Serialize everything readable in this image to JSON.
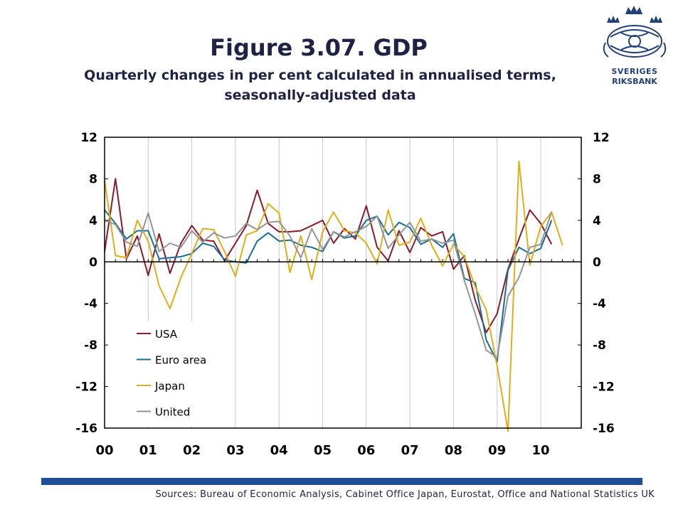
{
  "title": "Figure 3.07. GDP",
  "subtitle": "Quarterly changes in per cent calculated in annualised terms, seasonally-adjusted data",
  "sources": "Sources: Bureau of Economic Analysis, Cabinet Office Japan, Eurostat, Office and National Statistics UK",
  "logo": {
    "line1": "SVERIGES",
    "line2": "RIKSBANK",
    "color": "#24407a"
  },
  "chart_data": {
    "type": "line",
    "x_start_year": 2000,
    "x_tick_labels": [
      "00",
      "01",
      "02",
      "03",
      "04",
      "05",
      "06",
      "07",
      "08",
      "09",
      "10"
    ],
    "y_tick_labels_left": [
      "12",
      "8",
      "4",
      "0",
      "-4",
      "-8",
      "-12",
      "-16"
    ],
    "y_tick_labels_right": [
      "12",
      "8",
      "4",
      "0",
      "-4",
      "-8",
      "-12",
      "-16"
    ],
    "y_ticks": [
      12,
      8,
      4,
      0,
      -4,
      -8,
      -12,
      -16
    ],
    "ylim": [
      -16,
      12
    ],
    "grid": "vertical",
    "legend_position": "lower-left",
    "series": [
      {
        "name": "USA",
        "color": "#8b1a2a",
        "values": [
          1.0,
          8.0,
          0.3,
          2.5,
          -1.3,
          2.7,
          -1.1,
          1.8,
          3.5,
          2.1,
          2.0,
          0.1,
          1.8,
          3.5,
          6.9,
          3.7,
          2.9,
          2.9,
          3.0,
          3.5,
          4.0,
          1.8,
          3.2,
          2.2,
          5.4,
          1.4,
          0.1,
          3.0,
          0.9,
          3.3,
          2.5,
          2.9,
          -0.7,
          0.6,
          -3.7,
          -6.8,
          -5.0,
          -0.7,
          2.2,
          5.0,
          3.7,
          1.7
        ]
      },
      {
        "name": "Euro area",
        "color": "#1a6e96",
        "values": [
          5.0,
          3.7,
          2.2,
          3.0,
          3.0,
          0.3,
          0.4,
          0.5,
          0.8,
          1.8,
          1.5,
          0.2,
          0.0,
          -0.1,
          2.0,
          2.8,
          2.0,
          2.1,
          1.6,
          1.4,
          1.0,
          2.9,
          2.3,
          2.5,
          4.0,
          4.4,
          2.6,
          3.8,
          3.3,
          1.7,
          2.2,
          1.4,
          2.7,
          -1.6,
          -2.0,
          -7.5,
          -9.6,
          -0.8,
          1.4,
          0.8,
          1.3,
          4.0
        ]
      },
      {
        "name": "Japan",
        "color": "#e0ae1a",
        "values": [
          7.8,
          0.6,
          0.4,
          4.0,
          2.0,
          -2.3,
          -4.5,
          -1.5,
          0.8,
          3.2,
          3.1,
          1.0,
          -1.4,
          2.6,
          3.0,
          5.6,
          4.7,
          -1.0,
          2.5,
          -1.7,
          2.9,
          4.8,
          3.0,
          2.8,
          1.8,
          -0.2,
          5.0,
          1.6,
          1.9,
          4.2,
          1.6,
          -0.4,
          1.7,
          0.5,
          -2.4,
          -4.6,
          -10.0,
          -16.3,
          9.7,
          -0.3,
          3.4,
          4.8,
          1.6
        ]
      },
      {
        "name": "United",
        "color": "#959595",
        "values": [
          4.0,
          3.6,
          1.9,
          1.5,
          4.7,
          1.0,
          1.8,
          1.4,
          3.0,
          1.9,
          2.8,
          2.3,
          2.5,
          3.7,
          3.1,
          3.8,
          3.9,
          2.5,
          0.4,
          3.2,
          1.2,
          2.9,
          2.4,
          2.9,
          3.4,
          4.4,
          1.3,
          2.6,
          3.8,
          2.0,
          2.2,
          1.8,
          2.1,
          -1.8,
          -5.0,
          -8.5,
          -9.2,
          -3.3,
          -1.5,
          1.4,
          1.7,
          4.8
        ]
      }
    ]
  }
}
